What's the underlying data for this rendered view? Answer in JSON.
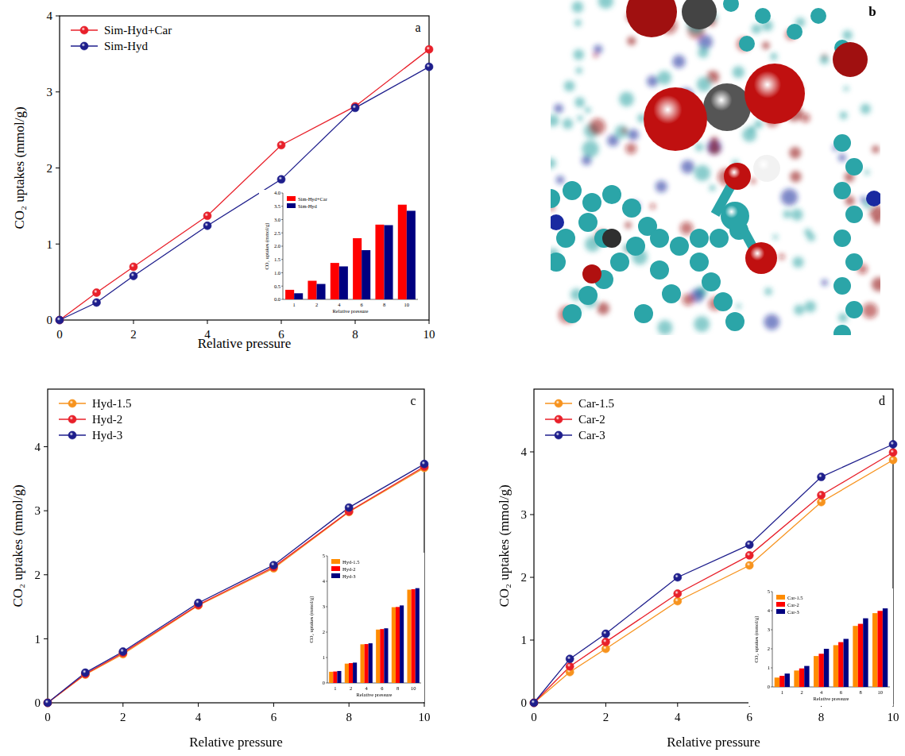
{
  "chart_data": [
    {
      "type": "line",
      "annotations": [
        "a"
      ],
      "x": [
        0,
        1,
        2,
        4,
        6,
        8,
        10
      ],
      "series": [
        {
          "name": "Sim-Hyd+Car",
          "color": "#e8202a",
          "marker": "circle",
          "values": [
            0,
            0.36,
            0.7,
            1.37,
            2.3,
            2.81,
            3.56
          ]
        },
        {
          "name": "Sim-Hyd",
          "color": "#1e1e8c",
          "marker": "circle",
          "values": [
            0,
            0.23,
            0.58,
            1.24,
            1.85,
            2.79,
            3.33
          ]
        }
      ],
      "xlim": [
        0,
        10
      ],
      "ylim": [
        0,
        4
      ],
      "xticks": [
        0,
        2,
        4,
        6,
        8,
        10
      ],
      "yticks": [
        0,
        1,
        2,
        3,
        4
      ],
      "x_label": "Relative pressure",
      "y_label": "CO₂ uptakes (mmol/g)",
      "legend": "upper left"
    },
    {
      "type": "bar",
      "categories": [
        "1",
        "2",
        "4",
        "6",
        "8",
        "10"
      ],
      "series": [
        {
          "name": "Sim-Hyd+Car",
          "color": "#ff0000",
          "values": [
            0.36,
            0.7,
            1.37,
            2.3,
            2.81,
            3.56
          ]
        },
        {
          "name": "Sim-Hyd",
          "color": "#000080",
          "values": [
            0.23,
            0.58,
            1.24,
            1.85,
            2.79,
            3.33
          ]
        }
      ],
      "ylim": [
        0,
        4
      ],
      "yticks": [
        {
          "value": 0,
          "label": "0.0"
        },
        {
          "value": 0.5,
          "label": "0.5"
        },
        {
          "value": 1,
          "label": "1.0"
        },
        {
          "value": 1.5,
          "label": "1.5"
        },
        {
          "value": 2,
          "label": "2.0"
        },
        {
          "value": 2.5,
          "label": "2.5"
        },
        {
          "value": 3,
          "label": "3.0"
        },
        {
          "value": 3.5,
          "label": "3.5"
        },
        {
          "value": 4,
          "label": "4.0"
        }
      ],
      "x_label": "Relative pressure",
      "y_label": "CO₂ uptakes (mmol/g)",
      "legend": "upper left"
    },
    {
      "type": "image",
      "annotations": [
        "b"
      ]
    },
    {
      "type": "line",
      "annotations": [
        "c"
      ],
      "x": [
        0,
        1,
        2,
        4,
        6,
        8,
        10
      ],
      "series": [
        {
          "name": "Hyd-1.5",
          "color": "#f7931e",
          "marker": "circle",
          "values": [
            0,
            0.44,
            0.76,
            1.52,
            2.1,
            2.98,
            3.67
          ]
        },
        {
          "name": "Hyd-2",
          "color": "#e8202a",
          "marker": "circle",
          "values": [
            0,
            0.45,
            0.78,
            1.53,
            2.12,
            2.99,
            3.69
          ]
        },
        {
          "name": "Hyd-3",
          "color": "#1e1e8c",
          "marker": "circle",
          "values": [
            0,
            0.47,
            0.8,
            1.56,
            2.15,
            3.05,
            3.73
          ]
        }
      ],
      "xlim": [
        0,
        10
      ],
      "ylim": [
        0,
        4.9
      ],
      "xticks": [
        0,
        2,
        4,
        6,
        8,
        10
      ],
      "yticks": [
        0,
        1,
        2,
        3,
        4
      ],
      "x_label": "Relative pressure",
      "y_label": "CO₂ uptakes (mmol/g)",
      "legend": "upper left"
    },
    {
      "type": "bar",
      "categories": [
        "1",
        "2",
        "4",
        "6",
        "8",
        "10"
      ],
      "series": [
        {
          "name": "Hyd-1.5",
          "color": "#ff8c00",
          "values": [
            0.44,
            0.76,
            1.52,
            2.1,
            2.98,
            3.67
          ]
        },
        {
          "name": "Hyd-2",
          "color": "#ff0000",
          "values": [
            0.45,
            0.78,
            1.53,
            2.12,
            2.99,
            3.69
          ]
        },
        {
          "name": "Hyd-3",
          "color": "#000080",
          "values": [
            0.47,
            0.8,
            1.56,
            2.15,
            3.05,
            3.73
          ]
        }
      ],
      "ylim": [
        0,
        5
      ],
      "yticks": [
        0,
        1,
        2,
        3,
        4,
        5
      ],
      "x_label": "Relative pressure",
      "y_label": "CO₂ uptakes (mmol/g)",
      "legend": "upper left"
    },
    {
      "type": "line",
      "annotations": [
        "d"
      ],
      "x": [
        0,
        1,
        2,
        4,
        6,
        8,
        10
      ],
      "series": [
        {
          "name": "Car-1.5",
          "color": "#f7931e",
          "marker": "circle",
          "values": [
            0,
            0.49,
            0.86,
            1.62,
            2.19,
            3.2,
            3.87
          ]
        },
        {
          "name": "Car-2",
          "color": "#e8202a",
          "marker": "circle",
          "values": [
            0,
            0.58,
            0.97,
            1.74,
            2.35,
            3.31,
            3.99
          ]
        },
        {
          "name": "Car-3",
          "color": "#1e1e8c",
          "marker": "circle",
          "values": [
            0,
            0.7,
            1.1,
            2.0,
            2.52,
            3.6,
            4.12
          ]
        }
      ],
      "xlim": [
        0,
        10
      ],
      "ylim": [
        0,
        5
      ],
      "xticks": [
        0,
        2,
        4,
        6,
        8,
        10
      ],
      "yticks": [
        0,
        1,
        2,
        3,
        4
      ],
      "x_label": "Relative pressure",
      "y_label": "CO₂ uptakes (mmol/g)",
      "legend": "upper left"
    },
    {
      "type": "bar",
      "categories": [
        "1",
        "2",
        "4",
        "6",
        "8",
        "10"
      ],
      "series": [
        {
          "name": "Car-1.5",
          "color": "#ff8c00",
          "values": [
            0.49,
            0.86,
            1.62,
            2.19,
            3.2,
            3.87
          ]
        },
        {
          "name": "Car-2",
          "color": "#ff0000",
          "values": [
            0.58,
            0.97,
            1.74,
            2.35,
            3.31,
            3.99
          ]
        },
        {
          "name": "Car-3",
          "color": "#000080",
          "values": [
            0.7,
            1.1,
            2.0,
            2.52,
            3.6,
            4.12
          ]
        }
      ],
      "ylim": [
        0,
        5
      ],
      "yticks": [
        0,
        1,
        2,
        3,
        4,
        5
      ],
      "x_label": "Relative pressure",
      "y_label": "CO₂ uptakes (mmol/g)",
      "legend": "upper left"
    }
  ]
}
